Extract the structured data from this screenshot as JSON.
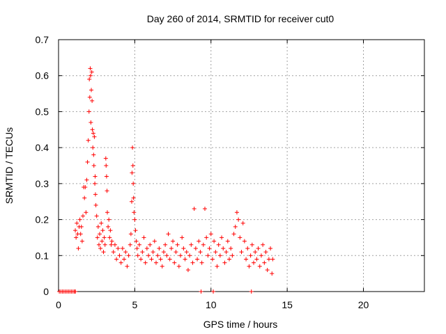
{
  "chart_data": {
    "type": "scatter",
    "title": "Day 260 of 2014, SRMTID for receiver cut0",
    "xlabel": "GPS time / hours",
    "ylabel": "SRMTID / TECUs",
    "xlim": [
      0,
      24
    ],
    "ylim": [
      0,
      0.7
    ],
    "xticks": [
      "0",
      "5",
      "10",
      "15",
      "20"
    ],
    "yticks": [
      "0",
      "0.1",
      "0.2",
      "0.3",
      "0.4",
      "0.5",
      "0.6",
      "0.7"
    ],
    "grid": true,
    "marker": "plus",
    "series": [
      {
        "name": "SRMTID",
        "color": "#ff0000",
        "points": [
          [
            0.05,
            0
          ],
          [
            0.15,
            0
          ],
          [
            0.25,
            0
          ],
          [
            0.35,
            0
          ],
          [
            0.45,
            0
          ],
          [
            0.55,
            0
          ],
          [
            0.65,
            0
          ],
          [
            0.75,
            0
          ],
          [
            0.85,
            0
          ],
          [
            0.95,
            0
          ],
          [
            1.05,
            0
          ],
          [
            1.1,
            0
          ],
          [
            1.1,
            0.17
          ],
          [
            1.15,
            0.15
          ],
          [
            1.2,
            0.19
          ],
          [
            1.25,
            0.16
          ],
          [
            1.3,
            0.12
          ],
          [
            1.35,
            0.18
          ],
          [
            1.4,
            0.2
          ],
          [
            1.45,
            0.16
          ],
          [
            1.5,
            0.18
          ],
          [
            1.55,
            0.14
          ],
          [
            1.6,
            0.21
          ],
          [
            1.65,
            0.29
          ],
          [
            1.7,
            0.26
          ],
          [
            1.75,
            0.29
          ],
          [
            1.8,
            0.22
          ],
          [
            1.85,
            0.31
          ],
          [
            1.9,
            0.36
          ],
          [
            1.95,
            0.42
          ],
          [
            2.0,
            0.5
          ],
          [
            2.02,
            0.59
          ],
          [
            2.05,
            0.54
          ],
          [
            2.08,
            0.62
          ],
          [
            2.1,
            0.6
          ],
          [
            2.12,
            0.47
          ],
          [
            2.15,
            0.56
          ],
          [
            2.18,
            0.61
          ],
          [
            2.2,
            0.53
          ],
          [
            2.22,
            0.45
          ],
          [
            2.25,
            0.4
          ],
          [
            2.28,
            0.44
          ],
          [
            2.3,
            0.38
          ],
          [
            2.32,
            0.35
          ],
          [
            2.35,
            0.43
          ],
          [
            2.38,
            0.3
          ],
          [
            2.4,
            0.32
          ],
          [
            2.42,
            0.27
          ],
          [
            2.45,
            0.24
          ],
          [
            2.5,
            0.21
          ],
          [
            2.55,
            0.15
          ],
          [
            2.6,
            0.18
          ],
          [
            2.65,
            0.13
          ],
          [
            2.7,
            0.16
          ],
          [
            2.75,
            0.12
          ],
          [
            2.8,
            0.19
          ],
          [
            2.85,
            0.14
          ],
          [
            2.9,
            0.17
          ],
          [
            2.95,
            0.11
          ],
          [
            3.0,
            0.15
          ],
          [
            3.05,
            0.13
          ],
          [
            3.1,
            0.37
          ],
          [
            3.12,
            0.35
          ],
          [
            3.15,
            0.32
          ],
          [
            3.18,
            0.28
          ],
          [
            3.2,
            0.22
          ],
          [
            3.25,
            0.18
          ],
          [
            3.3,
            0.2
          ],
          [
            3.35,
            0.15
          ],
          [
            3.4,
            0.17
          ],
          [
            3.45,
            0.13
          ],
          [
            3.5,
            0.14
          ],
          [
            3.6,
            0.11
          ],
          [
            3.7,
            0.13
          ],
          [
            3.8,
            0.09
          ],
          [
            3.9,
            0.12
          ],
          [
            4.0,
            0.1
          ],
          [
            4.1,
            0.08
          ],
          [
            4.2,
            0.12
          ],
          [
            4.3,
            0.09
          ],
          [
            4.4,
            0.11
          ],
          [
            4.5,
            0.07
          ],
          [
            4.6,
            0.1
          ],
          [
            4.7,
            0.13
          ],
          [
            4.75,
            0.16
          ],
          [
            4.8,
            0.25
          ],
          [
            4.82,
            0.33
          ],
          [
            4.85,
            0.4
          ],
          [
            4.88,
            0.35
          ],
          [
            4.9,
            0.3
          ],
          [
            4.92,
            0.26
          ],
          [
            4.95,
            0.22
          ],
          [
            5.0,
            0.2
          ],
          [
            5.05,
            0.17
          ],
          [
            5.1,
            0.14
          ],
          [
            5.15,
            0.12
          ],
          [
            5.2,
            0.1
          ],
          [
            5.3,
            0.13
          ],
          [
            5.4,
            0.09
          ],
          [
            5.5,
            0.11
          ],
          [
            5.6,
            0.15
          ],
          [
            5.7,
            0.08
          ],
          [
            5.8,
            0.12
          ],
          [
            5.9,
            0.1
          ],
          [
            6.0,
            0.13
          ],
          [
            6.1,
            0.09
          ],
          [
            6.2,
            0.11
          ],
          [
            6.3,
            0.14
          ],
          [
            6.4,
            0.08
          ],
          [
            6.5,
            0.1
          ],
          [
            6.6,
            0.12
          ],
          [
            6.7,
            0.09
          ],
          [
            6.8,
            0.07
          ],
          [
            6.9,
            0.11
          ],
          [
            7.0,
            0.13
          ],
          [
            7.1,
            0.1
          ],
          [
            7.2,
            0.16
          ],
          [
            7.3,
            0.09
          ],
          [
            7.4,
            0.12
          ],
          [
            7.5,
            0.14
          ],
          [
            7.6,
            0.08
          ],
          [
            7.7,
            0.11
          ],
          [
            7.8,
            0.13
          ],
          [
            7.9,
            0.07
          ],
          [
            8.0,
            0.1
          ],
          [
            8.1,
            0.15
          ],
          [
            8.2,
            0.12
          ],
          [
            8.3,
            0.09
          ],
          [
            8.4,
            0.11
          ],
          [
            8.5,
            0.06
          ],
          [
            8.6,
            0.1
          ],
          [
            8.7,
            0.13
          ],
          [
            8.8,
            0.08
          ],
          [
            8.9,
            0.23
          ],
          [
            9.0,
            0.12
          ],
          [
            9.1,
            0.09
          ],
          [
            9.2,
            0.14
          ],
          [
            9.3,
            0.11
          ],
          [
            9.35,
            0
          ],
          [
            9.4,
            0.08
          ],
          [
            9.5,
            0.13
          ],
          [
            9.6,
            0.23
          ],
          [
            9.7,
            0.15
          ],
          [
            9.8,
            0.1
          ],
          [
            9.9,
            0.12
          ],
          [
            10.0,
            0.16
          ],
          [
            10.1,
            0.09
          ],
          [
            10.15,
            0
          ],
          [
            10.2,
            0.14
          ],
          [
            10.3,
            0.11
          ],
          [
            10.4,
            0.07
          ],
          [
            10.5,
            0.13
          ],
          [
            10.6,
            0.1
          ],
          [
            10.7,
            0.15
          ],
          [
            10.8,
            0.12
          ],
          [
            10.9,
            0.08
          ],
          [
            11.0,
            0.11
          ],
          [
            11.1,
            0.14
          ],
          [
            11.2,
            0.09
          ],
          [
            11.3,
            0.12
          ],
          [
            11.4,
            0.1
          ],
          [
            11.5,
            0.16
          ],
          [
            11.6,
            0.18
          ],
          [
            11.7,
            0.22
          ],
          [
            11.8,
            0.2
          ],
          [
            11.9,
            0.15
          ],
          [
            12.0,
            0.11
          ],
          [
            12.1,
            0.19
          ],
          [
            12.2,
            0.14
          ],
          [
            12.3,
            0.09
          ],
          [
            12.4,
            0.12
          ],
          [
            12.5,
            0.07
          ],
          [
            12.6,
            0.1
          ],
          [
            12.65,
            0
          ],
          [
            12.7,
            0.13
          ],
          [
            12.8,
            0.08
          ],
          [
            12.9,
            0.11
          ],
          [
            13.0,
            0.09
          ],
          [
            13.1,
            0.12
          ],
          [
            13.2,
            0.07
          ],
          [
            13.3,
            0.1
          ],
          [
            13.4,
            0.13
          ],
          [
            13.5,
            0.08
          ],
          [
            13.6,
            0.11
          ],
          [
            13.7,
            0.06
          ],
          [
            13.8,
            0.09
          ],
          [
            13.9,
            0.12
          ],
          [
            14.0,
            0.05
          ],
          [
            14.05,
            0.09
          ]
        ]
      }
    ]
  }
}
